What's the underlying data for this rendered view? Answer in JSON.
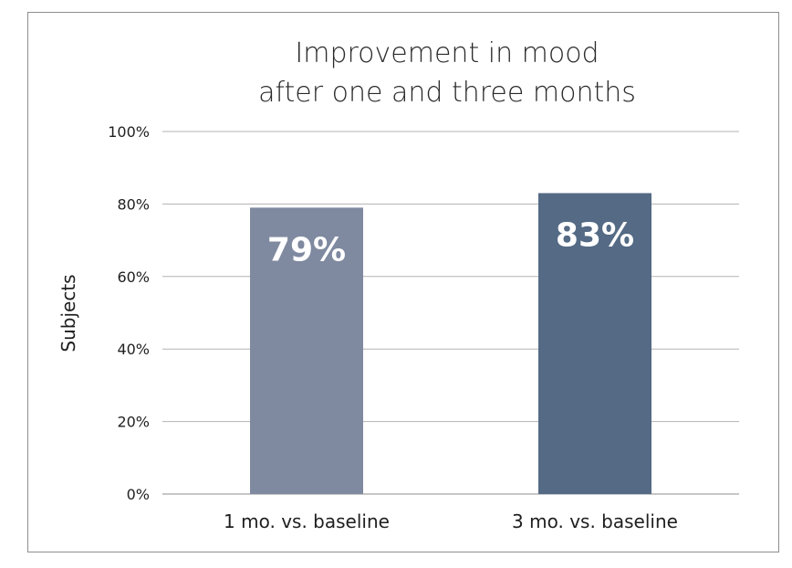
{
  "chart_data": {
    "type": "bar",
    "title_lines": [
      "Improvement in mood",
      "after one and three months"
    ],
    "categories": [
      "1 mo. vs. baseline",
      "3 mo. vs. baseline"
    ],
    "values": [
      79,
      83
    ],
    "value_labels": [
      "79%",
      "83%"
    ],
    "xlabel": "",
    "ylabel": "Subjects",
    "ylim": [
      0,
      100
    ],
    "yticks": [
      0,
      20,
      40,
      60,
      80,
      100
    ],
    "ytick_labels": [
      "0%",
      "20%",
      "40%",
      "60%",
      "80%",
      "100%"
    ],
    "grid": true,
    "legend": "none",
    "colors": [
      "#7f8aa0",
      "#546a85"
    ],
    "gridline_color": "#b3b3b3",
    "label_color": "#ffffff"
  }
}
